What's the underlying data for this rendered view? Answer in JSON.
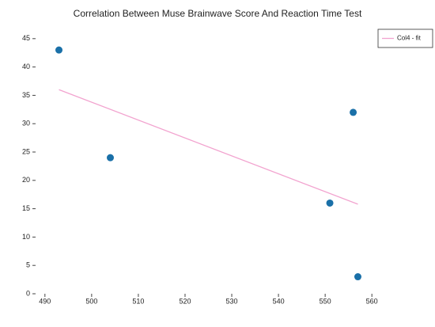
{
  "chart_data": {
    "type": "scatter",
    "title": "Correlation Between Muse Brainwave Score And Reaction Time Test",
    "series": [
      {
        "type": "scatter",
        "color": "#1a70a8",
        "x": [
          493,
          504,
          551,
          556,
          557
        ],
        "values": [
          43,
          24,
          16,
          32,
          3
        ]
      },
      {
        "type": "line",
        "name": "Col4 - fit",
        "color": "#f2a3cf",
        "x": [
          493,
          557
        ],
        "values": [
          36,
          15.8
        ]
      }
    ],
    "xlim": [
      488,
      562
    ],
    "ylim": [
      0,
      47
    ],
    "xticks": [
      490,
      500,
      510,
      520,
      530,
      540,
      550,
      560
    ],
    "yticks": [
      0,
      5,
      10,
      15,
      20,
      25,
      30,
      35,
      40,
      45
    ],
    "legend": "top-right"
  }
}
